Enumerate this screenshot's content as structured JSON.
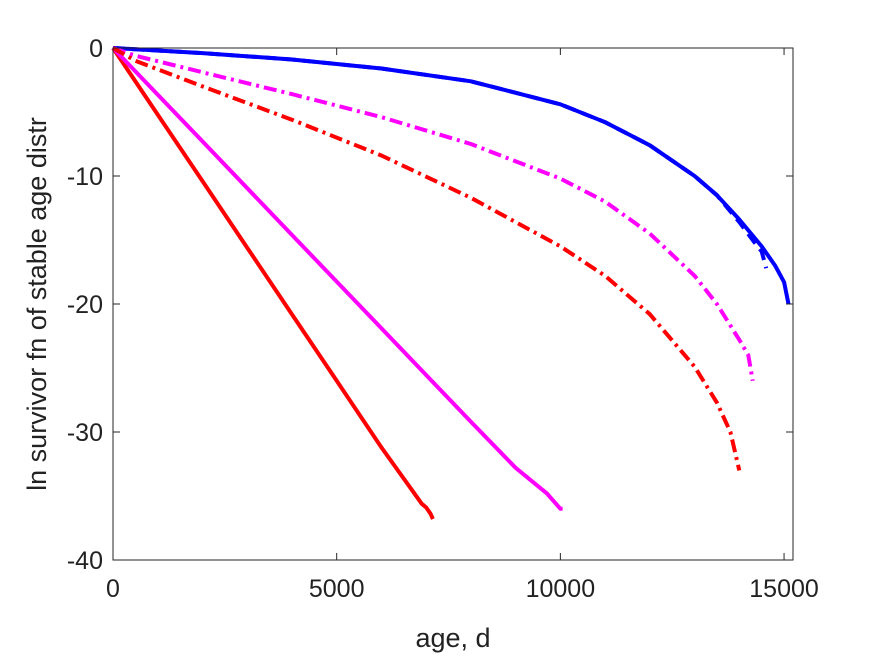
{
  "chart_data": {
    "type": "line",
    "title": "",
    "xlabel": "age, d",
    "ylabel": "ln survivor fn of stable age distr",
    "xlim": [
      0,
      15200
    ],
    "ylim": [
      -40,
      0
    ],
    "xticks": [
      0,
      5000,
      10000,
      15000
    ],
    "yticks": [
      -40,
      -30,
      -20,
      -10,
      0
    ],
    "xtick_labels": [
      "0",
      "5000",
      "10000",
      "15000"
    ],
    "ytick_labels": [
      "-40",
      "-30",
      "-20",
      "-10",
      "0"
    ],
    "grid": false,
    "legend": "none",
    "series": [
      {
        "color": "#ff0000",
        "style": "solid",
        "x": [
          0,
          1000,
          2000,
          3000,
          4000,
          5000,
          6000,
          6900,
          7000,
          7100,
          7150
        ],
        "y": [
          0,
          -5.2,
          -10.4,
          -15.6,
          -20.8,
          -26.0,
          -31.2,
          -35.6,
          -35.9,
          -36.4,
          -36.8
        ]
      },
      {
        "color": "#ff00ff",
        "style": "solid",
        "x": [
          0,
          2000,
          4000,
          6000,
          8000,
          9000,
          9700,
          9800,
          9900,
          10000,
          10050
        ],
        "y": [
          0,
          -7.3,
          -14.6,
          -21.9,
          -29.2,
          -32.8,
          -34.8,
          -35.2,
          -35.6,
          -36.0,
          -36.0
        ]
      },
      {
        "color": "#0000ff",
        "style": "solid",
        "x": [
          0,
          2000,
          4000,
          6000,
          8000,
          10000,
          11000,
          12000,
          13000,
          13500,
          14000,
          14500,
          14800,
          15000,
          15100
        ],
        "y": [
          0,
          -0.4,
          -0.9,
          -1.6,
          -2.6,
          -4.4,
          -5.8,
          -7.6,
          -10.0,
          -11.5,
          -13.4,
          -15.5,
          -17.0,
          -18.3,
          -20.0
        ]
      },
      {
        "color": "#0000ff",
        "style": "dashed",
        "x": [
          0,
          2000,
          4000,
          6000,
          8000,
          10000,
          11000,
          12000,
          13000,
          13500,
          14000,
          14300,
          14500,
          14600
        ],
        "y": [
          0,
          -0.4,
          -0.9,
          -1.6,
          -2.6,
          -4.4,
          -5.8,
          -7.6,
          -10.0,
          -11.5,
          -13.6,
          -15.0,
          -15.9,
          -17.2
        ]
      },
      {
        "color": "#ff00ff",
        "style": "dashdot",
        "x": [
          0,
          500,
          2000,
          4000,
          6000,
          8000,
          10000,
          11000,
          12000,
          13000,
          13500,
          14000,
          14200,
          14300
        ],
        "y": [
          0,
          -0.6,
          -1.9,
          -3.6,
          -5.4,
          -7.5,
          -10.2,
          -12.0,
          -14.5,
          -17.8,
          -20.0,
          -22.8,
          -24.0,
          -26.0
        ]
      },
      {
        "color": "#ff0000",
        "style": "dashdot",
        "x": [
          0,
          500,
          2000,
          4000,
          6000,
          8000,
          10000,
          11000,
          12000,
          13000,
          13500,
          13800,
          14000
        ],
        "y": [
          0,
          -1.0,
          -3.0,
          -5.6,
          -8.4,
          -11.7,
          -15.5,
          -17.8,
          -20.8,
          -24.9,
          -27.7,
          -30.0,
          -33.0
        ]
      }
    ]
  }
}
